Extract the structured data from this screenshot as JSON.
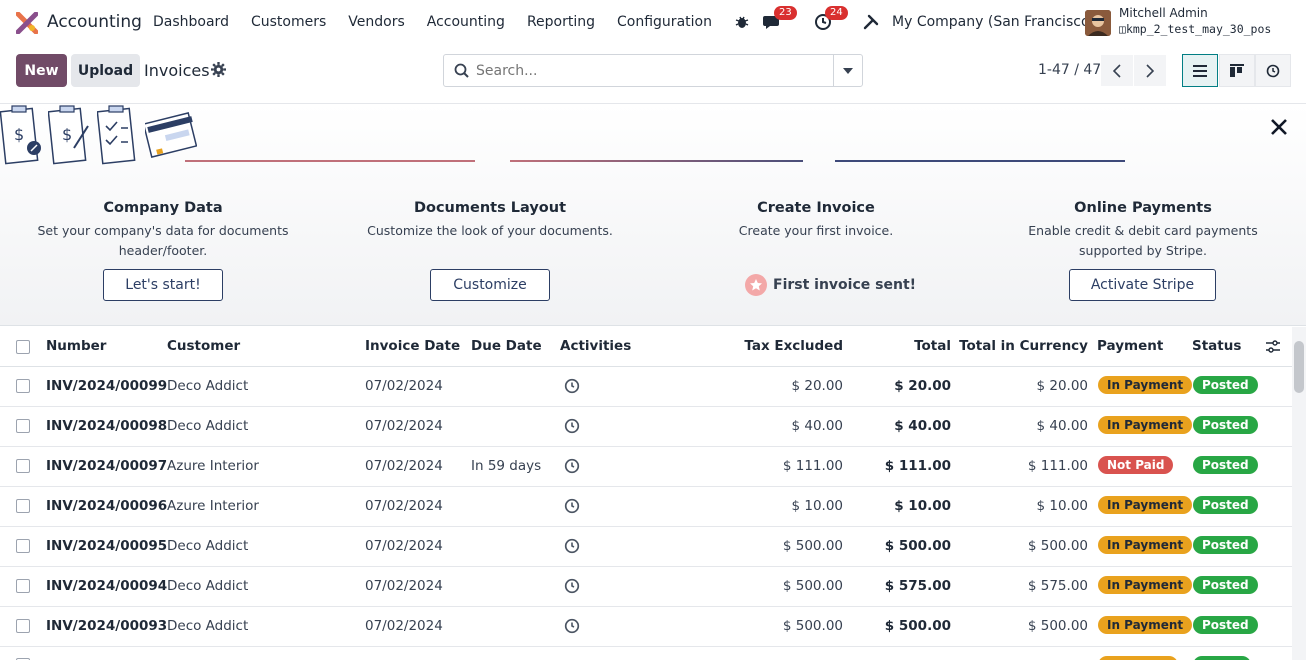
{
  "navbar": {
    "app_name": "Accounting",
    "menu": [
      "Dashboard",
      "Customers",
      "Vendors",
      "Accounting",
      "Reporting",
      "Configuration"
    ],
    "messages_count": "23",
    "activities_count": "24",
    "company": "My Company (San Francisco)",
    "user_name": "Mitchell Admin",
    "db_name": "kmp_2_test_may_30_pos",
    "accent_color": "#714b67"
  },
  "control": {
    "new_label": "New",
    "upload_label": "Upload",
    "breadcrumb": "Invoices",
    "search_placeholder": "Search...",
    "pager": "1-47 / 47"
  },
  "onboarding": {
    "steps": [
      {
        "title": "Company Data",
        "desc_line1": "Set your company's data for documents",
        "desc_line2": "header/footer.",
        "button": "Let's start!"
      },
      {
        "title": "Documents Layout",
        "desc_line1": "Customize the look of your documents.",
        "desc_line2": "",
        "button": "Customize"
      },
      {
        "title": "Create Invoice",
        "desc_line1": "Create your first invoice.",
        "desc_line2": "",
        "done": "First invoice sent!"
      },
      {
        "title": "Online Payments",
        "desc_line1": "Enable credit & debit card payments",
        "desc_line2": "supported by Stripe.",
        "button": "Activate Stripe"
      }
    ]
  },
  "table": {
    "columns": [
      "Number",
      "Customer",
      "Invoice Date",
      "Due Date",
      "Activities",
      "Tax Excluded",
      "Total",
      "Total in Currency",
      "Payment",
      "Status"
    ],
    "rows": [
      {
        "number": "INV/2024/00099",
        "customer": "Deco Addict",
        "date": "07/02/2024",
        "due": "",
        "tax_excl": "$ 20.00",
        "total": "$ 20.00",
        "total_cur": "$ 20.00",
        "payment": "In Payment",
        "status": "Posted"
      },
      {
        "number": "INV/2024/00098",
        "customer": "Deco Addict",
        "date": "07/02/2024",
        "due": "",
        "tax_excl": "$ 40.00",
        "total": "$ 40.00",
        "total_cur": "$ 40.00",
        "payment": "In Payment",
        "status": "Posted"
      },
      {
        "number": "INV/2024/00097",
        "customer": "Azure Interior",
        "date": "07/02/2024",
        "due": "In 59 days",
        "tax_excl": "$ 111.00",
        "total": "$ 111.00",
        "total_cur": "$ 111.00",
        "payment": "Not Paid",
        "status": "Posted"
      },
      {
        "number": "INV/2024/00096",
        "customer": "Azure Interior",
        "date": "07/02/2024",
        "due": "",
        "tax_excl": "$ 10.00",
        "total": "$ 10.00",
        "total_cur": "$ 10.00",
        "payment": "In Payment",
        "status": "Posted"
      },
      {
        "number": "INV/2024/00095",
        "customer": "Deco Addict",
        "date": "07/02/2024",
        "due": "",
        "tax_excl": "$ 500.00",
        "total": "$ 500.00",
        "total_cur": "$ 500.00",
        "payment": "In Payment",
        "status": "Posted"
      },
      {
        "number": "INV/2024/00094",
        "customer": "Deco Addict",
        "date": "07/02/2024",
        "due": "",
        "tax_excl": "$ 500.00",
        "total": "$ 575.00",
        "total_cur": "$ 575.00",
        "payment": "In Payment",
        "status": "Posted"
      },
      {
        "number": "INV/2024/00093",
        "customer": "Deco Addict",
        "date": "07/02/2024",
        "due": "",
        "tax_excl": "$ 500.00",
        "total": "$ 500.00",
        "total_cur": "$ 500.00",
        "payment": "In Payment",
        "status": "Posted"
      }
    ]
  }
}
